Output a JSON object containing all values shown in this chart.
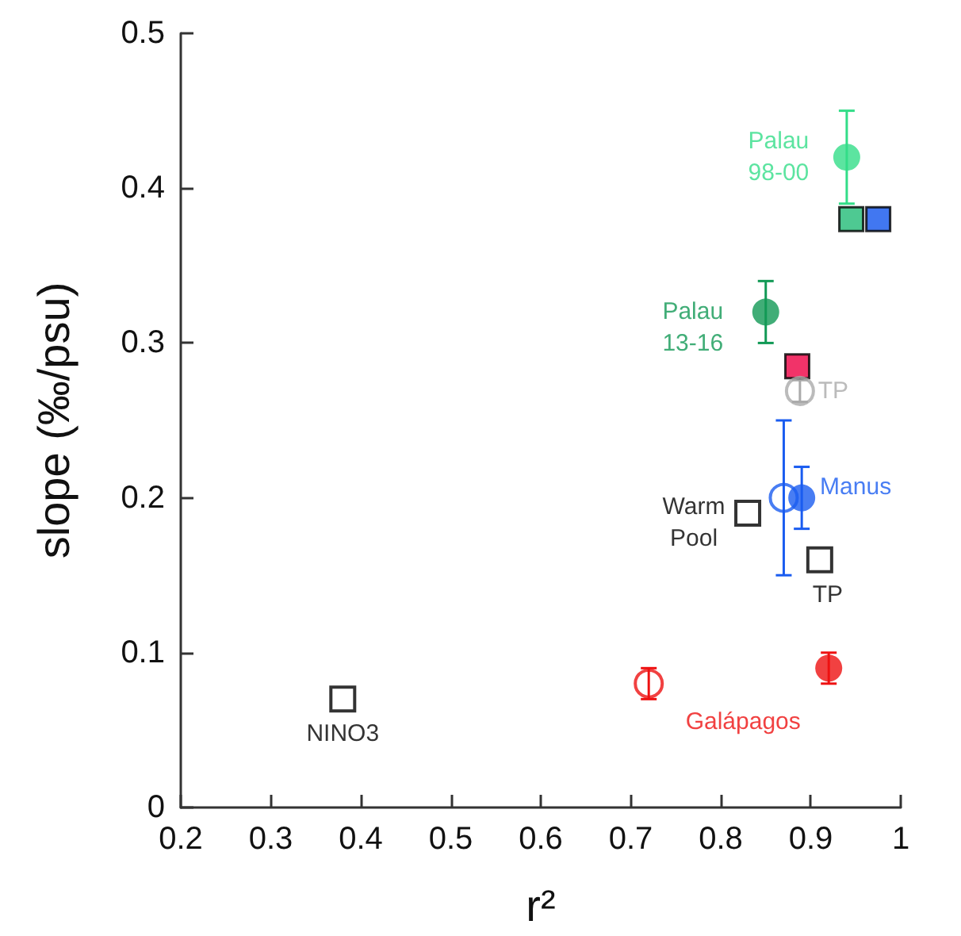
{
  "chart_data": {
    "type": "scatter",
    "xlabel": "r²",
    "ylabel": "slope (‰/psu)",
    "xlim": [
      0.2,
      1
    ],
    "ylim": [
      0,
      0.5
    ],
    "xticks": [
      0.2,
      0.3,
      0.4,
      0.5,
      0.6,
      0.7,
      0.8,
      0.9,
      1
    ],
    "yticks": [
      0,
      0.1,
      0.2,
      0.3,
      0.4,
      0.5
    ],
    "grid": false,
    "series": [
      {
        "name": "Palau\n98-00",
        "color": "#33dd88",
        "marker": "circle",
        "x": [
          0.94
        ],
        "values": [
          0.42
        ],
        "errors": [
          [
            0.39,
            0.45
          ]
        ]
      },
      {
        "color": "#22bb77",
        "marker": "square",
        "x": [
          0.945
        ],
        "values": [
          0.38
        ]
      },
      {
        "color": "#1155ee",
        "marker": "square",
        "x": [
          0.975
        ],
        "values": [
          0.38
        ]
      },
      {
        "name": "Palau\n13-16",
        "color": "#119955",
        "marker": "circle",
        "x": [
          0.85
        ],
        "values": [
          0.32
        ],
        "errors": [
          [
            0.3,
            0.34
          ]
        ]
      },
      {
        "color": "#ee0044",
        "marker": "square",
        "x": [
          0.885
        ],
        "values": [
          0.285
        ]
      },
      {
        "name": "TP",
        "color": "#aaaaaa",
        "marker": "circle",
        "x": [
          0.888
        ],
        "values": [
          0.269
        ],
        "errors": [
          [
            0.262,
            0.276
          ]
        ]
      },
      {
        "color": "#1a5cf0",
        "marker": "circle",
        "x": [
          0.87
        ],
        "values": [
          0.2
        ],
        "errors": [
          [
            0.15,
            0.25
          ]
        ]
      },
      {
        "name": "Manus",
        "color": "#1a5cf0",
        "marker": "circle",
        "x": [
          0.89
        ],
        "values": [
          0.2
        ],
        "errors": [
          [
            0.18,
            0.22
          ]
        ]
      },
      {
        "name": "Warm\nPool",
        "color": "#000000",
        "marker": "square",
        "x": [
          0.83
        ],
        "values": [
          0.19
        ]
      },
      {
        "name": "TP",
        "color": "#000000",
        "marker": "square",
        "x": [
          0.91
        ],
        "values": [
          0.16
        ]
      },
      {
        "color": "#ee1111",
        "marker": "circle",
        "x": [
          0.72
        ],
        "values": [
          0.08
        ],
        "errors": [
          [
            0.07,
            0.09
          ]
        ]
      },
      {
        "name": "Galápagos",
        "color": "#ee1111",
        "marker": "circle",
        "x": [
          0.92
        ],
        "values": [
          0.09
        ],
        "errors": [
          [
            0.08,
            0.1
          ]
        ]
      },
      {
        "name": "NINO3",
        "color": "#000000",
        "marker": "square",
        "x": [
          0.38
        ],
        "values": [
          0.07
        ]
      }
    ]
  }
}
